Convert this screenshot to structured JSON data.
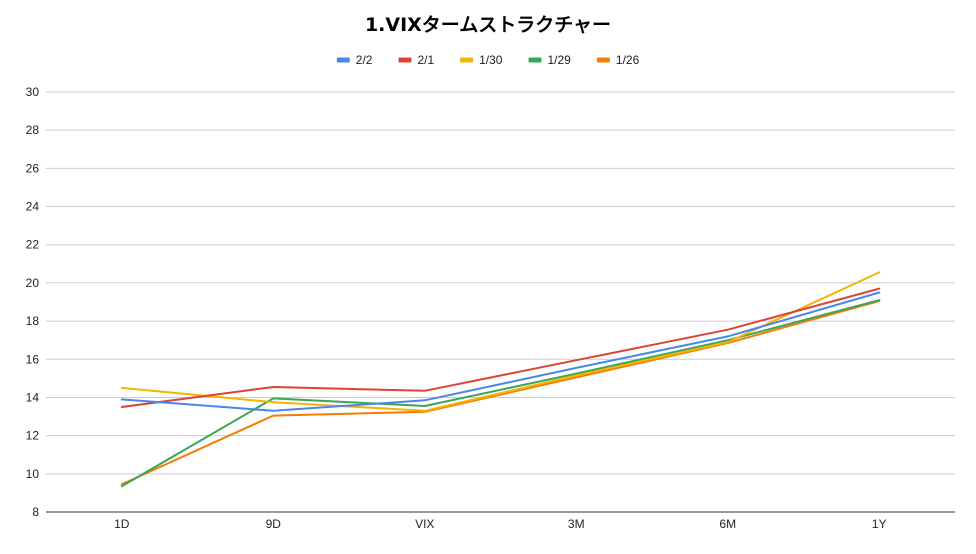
{
  "chart_data": {
    "type": "line",
    "title": "1.VIXタームストラクチャー",
    "categories": [
      "1D",
      "9D",
      "VIX",
      "3M",
      "6M",
      "1Y"
    ],
    "ylim": [
      8,
      30
    ],
    "yticks": [
      "8",
      "10",
      "12",
      "14",
      "16",
      "18",
      "20",
      "22",
      "24",
      "26",
      "28",
      "30"
    ],
    "grid": true,
    "legend_position": "top",
    "series": [
      {
        "name": "2/2",
        "color": "#4a86e8",
        "values": [
          13.9,
          13.3,
          13.85,
          15.55,
          17.2,
          19.5
        ]
      },
      {
        "name": "2/1",
        "color": "#db4437",
        "values": [
          13.5,
          14.55,
          14.35,
          15.95,
          17.55,
          19.7
        ]
      },
      {
        "name": "1/30",
        "color": "#f4b400",
        "values": [
          14.5,
          13.75,
          13.3,
          15.15,
          16.9,
          20.55
        ]
      },
      {
        "name": "1/29",
        "color": "#3aa757",
        "values": [
          9.35,
          13.95,
          13.55,
          15.25,
          17.0,
          19.1
        ]
      },
      {
        "name": "1/26",
        "color": "#f57c00",
        "values": [
          9.45,
          13.05,
          13.25,
          15.05,
          16.85,
          19.05
        ]
      }
    ]
  }
}
